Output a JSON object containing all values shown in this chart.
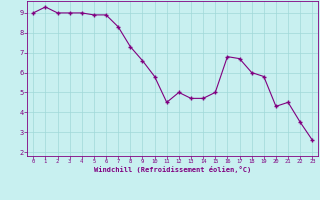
{
  "x": [
    0,
    1,
    2,
    3,
    4,
    5,
    6,
    7,
    8,
    9,
    10,
    11,
    12,
    13,
    14,
    15,
    16,
    17,
    18,
    19,
    20,
    21,
    22,
    23
  ],
  "y": [
    9.0,
    9.3,
    9.0,
    9.0,
    9.0,
    8.9,
    8.9,
    8.3,
    7.3,
    6.6,
    5.8,
    4.5,
    5.0,
    4.7,
    4.7,
    5.0,
    6.8,
    6.7,
    6.0,
    5.8,
    4.3,
    4.5,
    3.5,
    2.6
  ],
  "line_color": "#800080",
  "marker_color": "#800080",
  "bg_color": "#C8F0F0",
  "grid_color": "#A0D8D8",
  "xlabel": "Windchill (Refroidissement éolien,°C)",
  "xlim": [
    -0.5,
    23.5
  ],
  "ylim": [
    1.8,
    9.6
  ],
  "yticks": [
    2,
    3,
    4,
    5,
    6,
    7,
    8,
    9
  ],
  "xticks": [
    0,
    1,
    2,
    3,
    4,
    5,
    6,
    7,
    8,
    9,
    10,
    11,
    12,
    13,
    14,
    15,
    16,
    17,
    18,
    19,
    20,
    21,
    22,
    23
  ],
  "tick_color": "#800080",
  "label_color": "#800080",
  "spine_color": "#800080"
}
